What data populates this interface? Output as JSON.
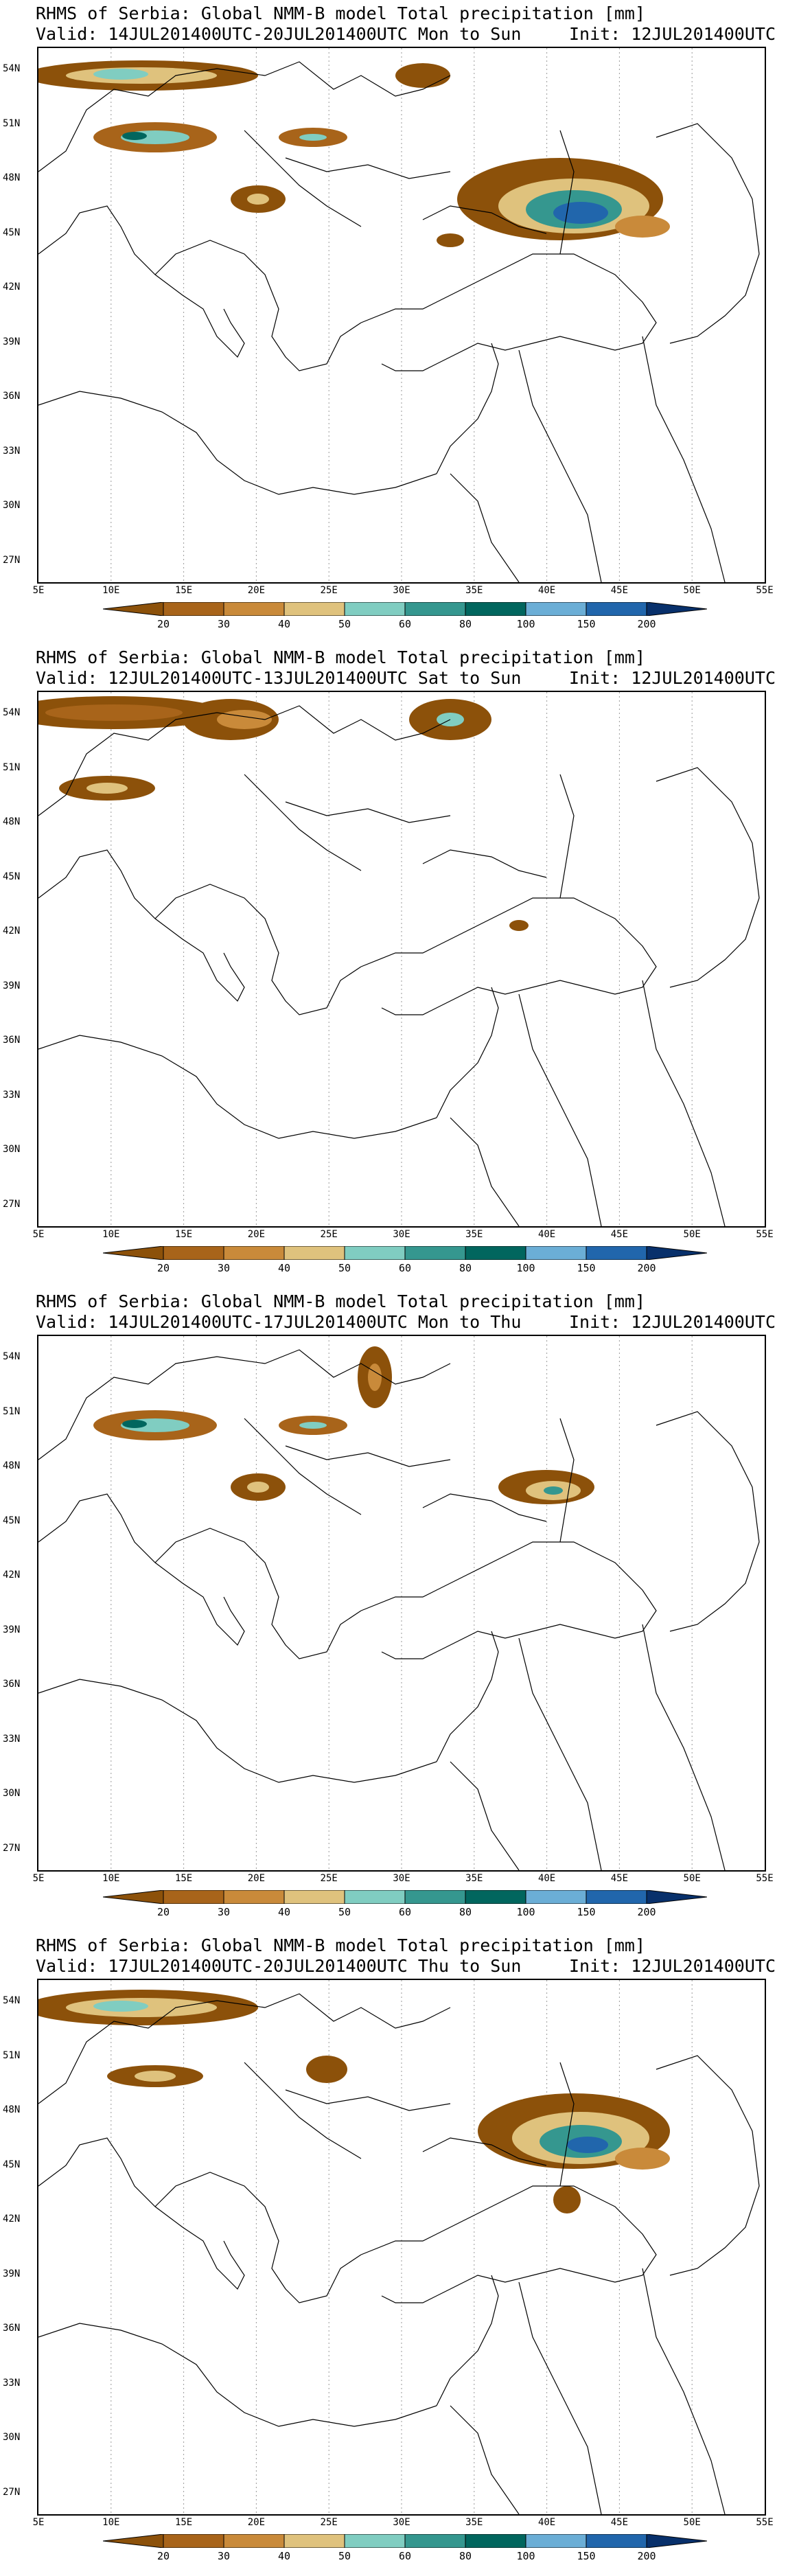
{
  "panels": [
    {
      "title_line1": "RHMS of Serbia: Global NMM-B model Total precipitation [mm]",
      "valid": "Valid: 14JUL201400UTC-20JUL201400UTC Mon to Sun",
      "init": "Init: 12JUL201400UTC"
    },
    {
      "title_line1": "RHMS of Serbia: Global NMM-B model Total precipitation [mm]",
      "valid": "Valid: 12JUL201400UTC-13JUL201400UTC Sat to Sun",
      "init": "Init: 12JUL201400UTC"
    },
    {
      "title_line1": "RHMS of Serbia: Global NMM-B model Total precipitation [mm]",
      "valid": "Valid: 14JUL201400UTC-17JUL201400UTC Mon to Thu",
      "init": "Init: 12JUL201400UTC"
    },
    {
      "title_line1": "RHMS of Serbia: Global NMM-B model Total precipitation [mm]",
      "valid": "Valid: 17JUL201400UTC-20JUL201400UTC Thu to Sun",
      "init": "Init: 12JUL201400UTC"
    }
  ],
  "lat_labels": [
    "54N",
    "51N",
    "48N",
    "45N",
    "42N",
    "39N",
    "36N",
    "33N",
    "30N",
    "27N"
  ],
  "lon_labels": [
    "5E",
    "10E",
    "15E",
    "20E",
    "25E",
    "30E",
    "35E",
    "40E",
    "45E",
    "50E",
    "55E"
  ],
  "colorbar": {
    "labels": [
      "20",
      "30",
      "40",
      "50",
      "60",
      "80",
      "100",
      "150",
      "200"
    ],
    "colors": [
      "#8c510a",
      "#a8641a",
      "#c98a3a",
      "#dfc27d",
      "#80cdc1",
      "#35978f",
      "#01665e",
      "#6baed6",
      "#2166ac",
      "#08306b"
    ]
  }
}
